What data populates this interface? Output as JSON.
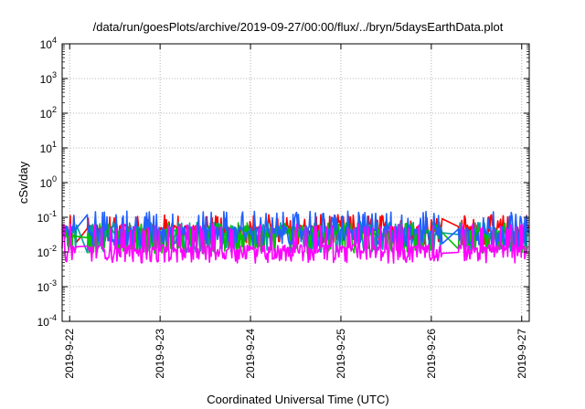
{
  "chart_data": {
    "type": "line",
    "title": "/data/run/goesPlots/archive/2019-09-27/00:00/flux/../bryn/5daysEarthData.plot",
    "xlabel": "Coordinated Universal Time (UTC)",
    "ylabel": "cSv/day",
    "yscale": "log",
    "ylim": [
      0.0001,
      10000
    ],
    "xlim": [
      "2019-09-21 22:00",
      "2019-09-27 02:00"
    ],
    "grid": true,
    "y_ticks": [
      {
        "value": 0.0001,
        "base": "10",
        "exp": "-4"
      },
      {
        "value": 0.001,
        "base": "10",
        "exp": "-3"
      },
      {
        "value": 0.01,
        "base": "10",
        "exp": "-2"
      },
      {
        "value": 0.1,
        "base": "10",
        "exp": "-1"
      },
      {
        "value": 1,
        "base": "10",
        "exp": "0"
      },
      {
        "value": 10,
        "base": "10",
        "exp": "1"
      },
      {
        "value": 100,
        "base": "10",
        "exp": "2"
      },
      {
        "value": 1000,
        "base": "10",
        "exp": "3"
      },
      {
        "value": 10000,
        "base": "10",
        "exp": "4"
      }
    ],
    "x_ticks": [
      {
        "value": "2019-09-22",
        "label": "2019-9-22"
      },
      {
        "value": "2019-09-23",
        "label": "2019-9-23"
      },
      {
        "value": "2019-09-24",
        "label": "2019-9-24"
      },
      {
        "value": "2019-09-25",
        "label": "2019-9-25"
      },
      {
        "value": "2019-09-26",
        "label": "2019-9-26"
      },
      {
        "value": "2019-09-27",
        "label": "2019-9-27"
      }
    ],
    "data_gaps": [
      [
        "2019-09-22 02:00",
        "2019-09-22 04:30"
      ],
      [
        "2019-09-26 03:00",
        "2019-09-26 07:00"
      ]
    ],
    "series": [
      {
        "color": "#ff0000",
        "base_value": 0.045,
        "peak_value": 0.12,
        "low_value": 0.02
      },
      {
        "color": "#00a0a0",
        "base_value": 0.035,
        "peak_value": 0.075,
        "low_value": 0.012
      },
      {
        "color": "#00c000",
        "base_value": 0.032,
        "peak_value": 0.07,
        "low_value": 0.011
      },
      {
        "color": "#2060ff",
        "base_value": 0.04,
        "peak_value": 0.15,
        "low_value": 0.018
      },
      {
        "color": "#ff00ff",
        "base_value": 0.012,
        "peak_value": 0.065,
        "low_value": 0.006
      }
    ]
  }
}
